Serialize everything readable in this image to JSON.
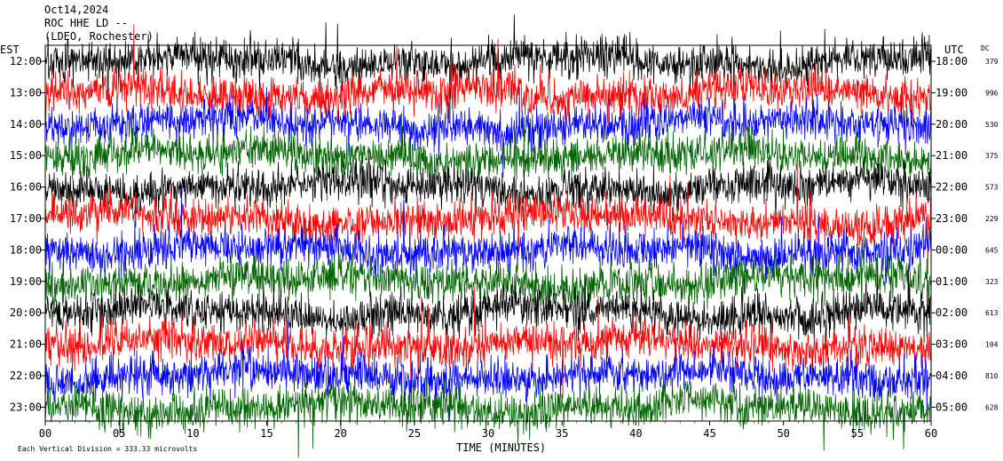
{
  "header": {
    "date": "Oct14,2024",
    "station": "ROC HHE LD --",
    "network": "(LDEO, Rochester)"
  },
  "axis_labels": {
    "left_timezone": "EST",
    "right_timezone": "UTC",
    "dc_header": "DC",
    "x_title": "TIME (MINUTES)"
  },
  "footer": {
    "scale_note": "Each Vertical Division =  333.33 microvolts"
  },
  "colors": {
    "trace_cycle": [
      "#000000",
      "#ff0000",
      "#0000ff",
      "#006400"
    ]
  },
  "chart_data": {
    "type": "line",
    "subtype": "helicorder",
    "xlabel": "TIME (MINUTES)",
    "xlim": [
      0,
      60
    ],
    "x_ticks": [
      "00",
      "05",
      "10",
      "15",
      "20",
      "25",
      "30",
      "35",
      "40",
      "45",
      "50",
      "55",
      "60"
    ],
    "rows": [
      {
        "est": "12:00",
        "utc": "18:00",
        "dc": "379",
        "color": "#000000"
      },
      {
        "est": "13:00",
        "utc": "19:00",
        "dc": "996",
        "color": "#ff0000"
      },
      {
        "est": "14:00",
        "utc": "20:00",
        "dc": "530",
        "color": "#0000ff"
      },
      {
        "est": "15:00",
        "utc": "21:00",
        "dc": "375",
        "color": "#006400"
      },
      {
        "est": "16:00",
        "utc": "22:00",
        "dc": "573",
        "color": "#000000"
      },
      {
        "est": "17:00",
        "utc": "23:00",
        "dc": "229",
        "color": "#ff0000"
      },
      {
        "est": "18:00",
        "utc": "00:00",
        "dc": "645",
        "color": "#0000ff"
      },
      {
        "est": "19:00",
        "utc": "01:00",
        "dc": "323",
        "color": "#006400"
      },
      {
        "est": "20:00",
        "utc": "02:00",
        "dc": "613",
        "color": "#000000"
      },
      {
        "est": "21:00",
        "utc": "03:00",
        "dc": "104",
        "color": "#ff0000"
      },
      {
        "est": "22:00",
        "utc": "04:00",
        "dc": "810",
        "color": "#0000ff"
      },
      {
        "est": "23:00",
        "utc": "05:00",
        "dc": "628",
        "color": "#006400"
      }
    ]
  }
}
